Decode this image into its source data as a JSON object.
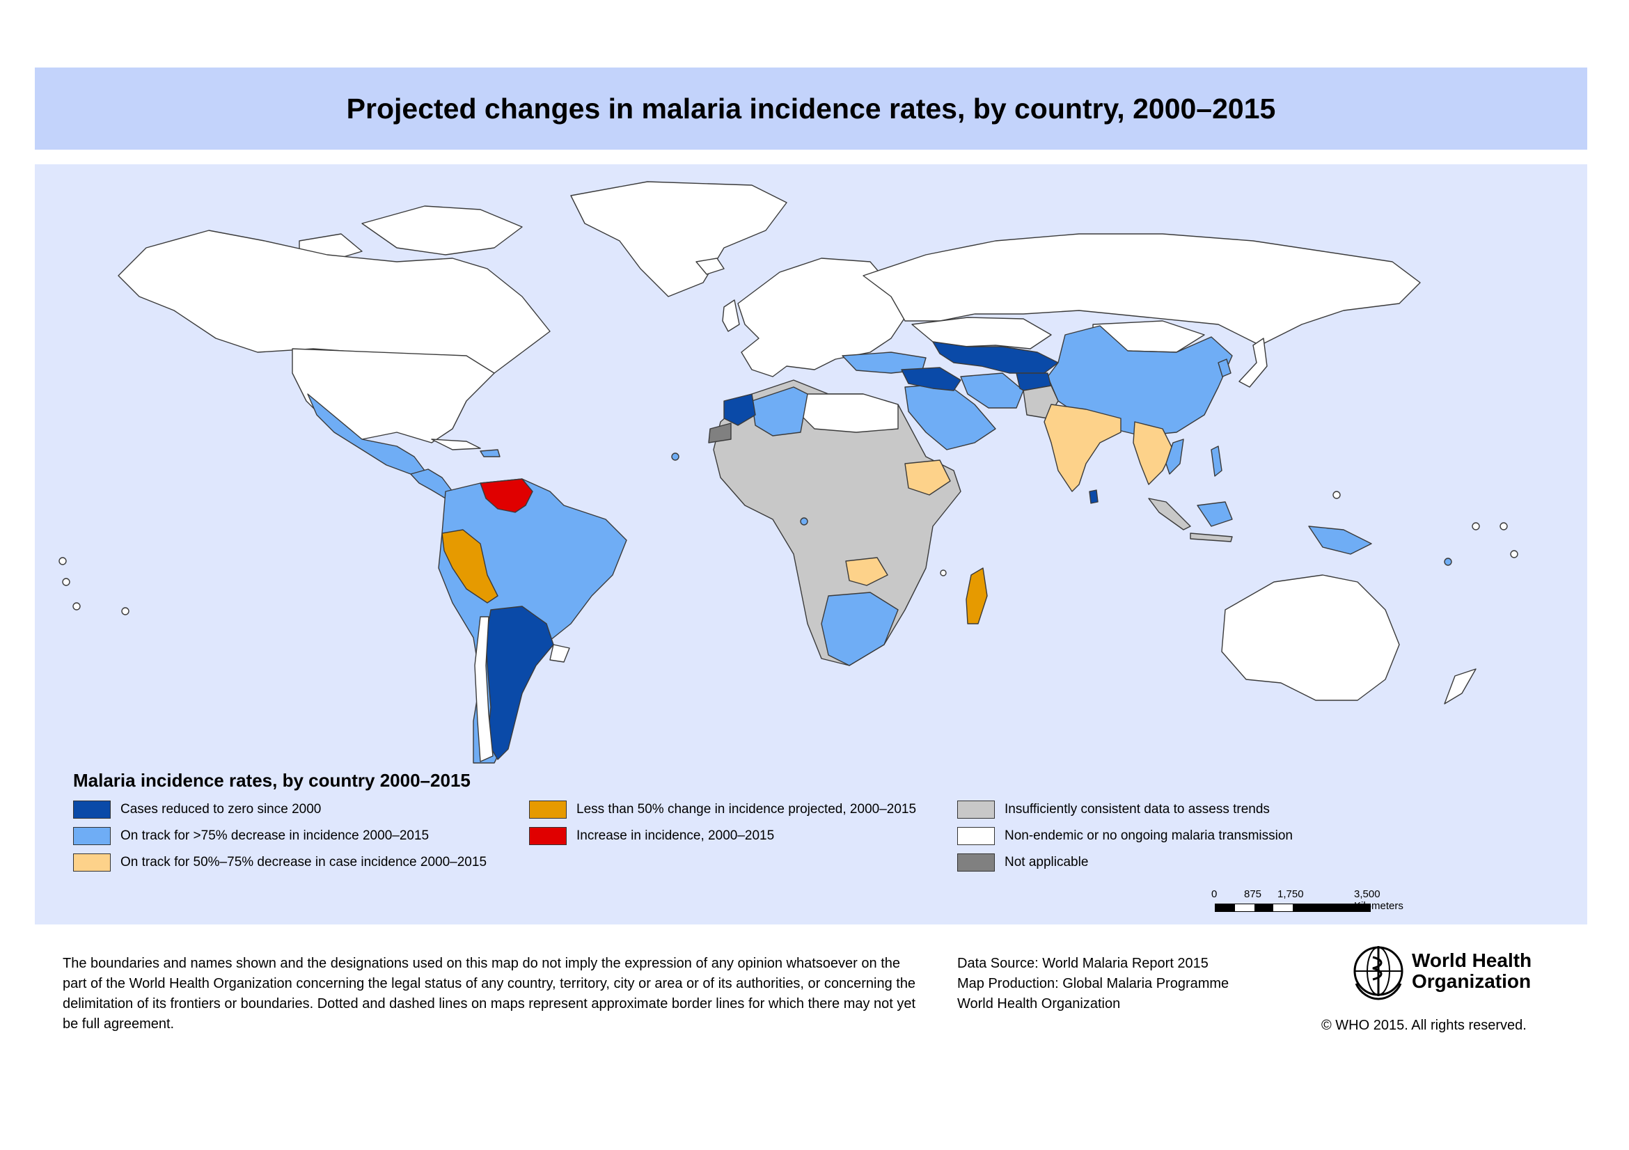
{
  "title": "Projected changes in malaria incidence rates, by country, 2000–2015",
  "colors": {
    "title_band": "#c3d3fb",
    "map_background": "#dfe7fd",
    "zero_cases": "#0a4aa8",
    "on_track_75": "#6fadf5",
    "on_track_50_75": "#fdd28a",
    "less_than_50": "#e69a00",
    "increase": "#e00000",
    "insufficient_data": "#c8c8c8",
    "non_endemic": "#ffffff",
    "not_applicable": "#808080"
  },
  "legend": {
    "title": "Malaria incidence rates, by country 2000–2015",
    "items": [
      {
        "label": "Cases reduced to zero since 2000",
        "color": "#0a4aa8"
      },
      {
        "label": "On track for >75% decrease in incidence 2000–2015",
        "color": "#6fadf5"
      },
      {
        "label": "On track for 50%–75% decrease in case incidence 2000–2015",
        "color": "#fdd28a"
      },
      {
        "label": "Less than 50% change in incidence projected, 2000–2015",
        "color": "#e69a00"
      },
      {
        "label": "Increase in incidence, 2000–2015",
        "color": "#e00000"
      },
      {
        "label": "Insufficiently consistent data to assess trends",
        "color": "#c8c8c8"
      },
      {
        "label": "Non-endemic or no ongoing malaria transmission",
        "color": "#ffffff"
      },
      {
        "label": "Not applicable",
        "color": "#808080"
      }
    ]
  },
  "scale": {
    "labels": [
      "0",
      "875",
      "1,750",
      "3,500 Kilometers"
    ]
  },
  "disclaimer": "The boundaries and names shown and the designations used on this map do not imply the expression of any opinion whatsoever on the part of the World Health Organization concerning the legal status of any country, territory, city or area or of its authorities, or concerning the delimitation of its frontiers or boundaries. Dotted and dashed lines on maps represent approximate border lines for which there may not yet be full agreement.",
  "sources": {
    "data_source": "Data Source: World Malaria Report 2015",
    "map_production": "Map Production: Global Malaria Programme",
    "organization": "World Health Organization"
  },
  "logo": {
    "line1": "World Health",
    "line2": "Organization",
    "icon": "who-emblem-icon"
  },
  "copyright": "© WHO 2015. All rights reserved."
}
